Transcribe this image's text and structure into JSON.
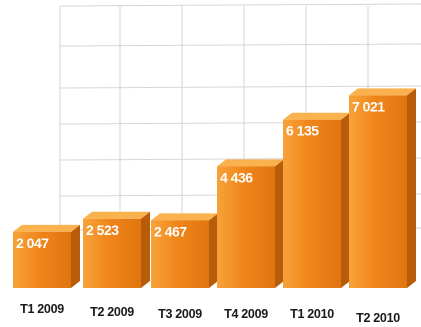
{
  "chart_data": {
    "type": "bar",
    "categories": [
      "T1 2009",
      "T2 2009",
      "T3 2009",
      "T4 2009",
      "T1 2010",
      "T2 2010"
    ],
    "values": [
      2047,
      2523,
      2467,
      4436,
      6135,
      7021
    ],
    "value_labels": [
      "2 047",
      "2 523",
      "2 467",
      "4 436",
      "6 135",
      "7 021"
    ],
    "ylim": [
      0,
      10500
    ],
    "grid": true,
    "colors": {
      "bar_front": "#f0861a",
      "bar_top": "#f9b24e",
      "bar_side": "#b85c0a",
      "grid": "#d6d6d6"
    }
  }
}
